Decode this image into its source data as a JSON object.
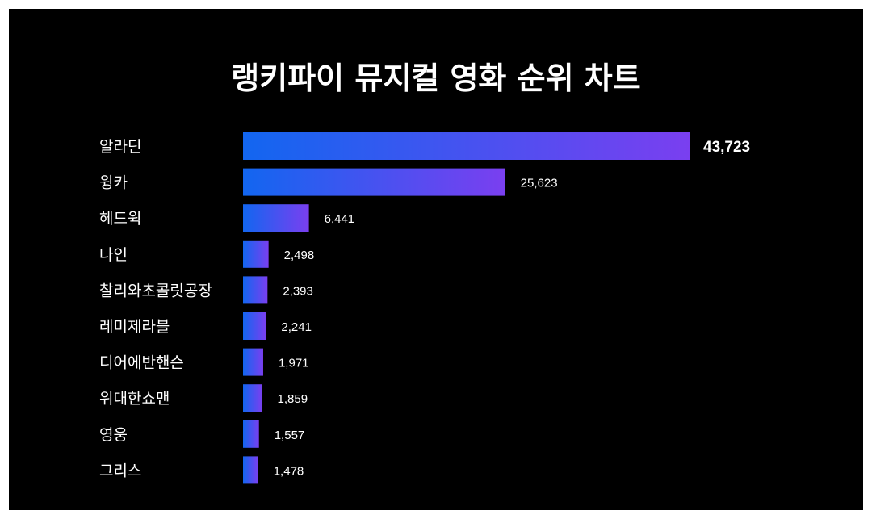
{
  "chart_data": {
    "type": "bar",
    "orientation": "horizontal",
    "title": "랭키파이 뮤지컬 영화 순위 차트",
    "categories": [
      "알라딘",
      "윙카",
      "헤드윅",
      "나인",
      "찰리와초콜릿공장",
      "레미제라블",
      "디어에반핸슨",
      "위대한쇼맨",
      "영웅",
      "그리스"
    ],
    "values": [
      43723,
      25623,
      6441,
      2498,
      2393,
      2241,
      1971,
      1859,
      1557,
      1478
    ],
    "value_labels": [
      "43,723",
      "25,623",
      "6,441",
      "2,498",
      "2,393",
      "2,241",
      "1,971",
      "1,859",
      "1,557",
      "1,478"
    ],
    "xlim": [
      0,
      43723
    ],
    "grid": false,
    "legend": "none",
    "colors": {
      "background": "#000000",
      "bar_start": "#1266f0",
      "bar_end": "#7a3ff0",
      "text": "#ffffff"
    }
  }
}
